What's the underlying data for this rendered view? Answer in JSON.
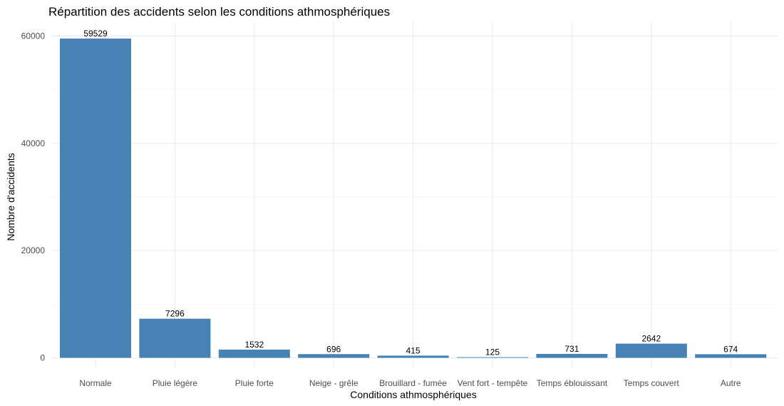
{
  "chart_data": {
    "type": "bar",
    "title": "Répartition des accidents selon les conditions athmosphériques",
    "xlabel": "Conditions athmosphériques",
    "ylabel": "Nombre d'accidents",
    "categories": [
      "Normale",
      "Pluie légère",
      "Pluie forte",
      "Neige - grêle",
      "Brouillard - fumée",
      "Vent fort - tempête",
      "Temps éblouissant",
      "Temps couvert",
      "Autre"
    ],
    "values": [
      59529,
      7296,
      1532,
      696,
      415,
      125,
      731,
      2642,
      674
    ],
    "data_labels": [
      "59529",
      "7296",
      "1532",
      "696",
      "415",
      "125",
      "731",
      "2642",
      "674"
    ],
    "yticks": [
      0,
      20000,
      40000,
      60000
    ],
    "ytick_labels": [
      "0",
      "20000",
      "40000",
      "60000"
    ],
    "ylim": [
      0,
      62500
    ],
    "grid": true,
    "bar_color": "#4682B4"
  }
}
